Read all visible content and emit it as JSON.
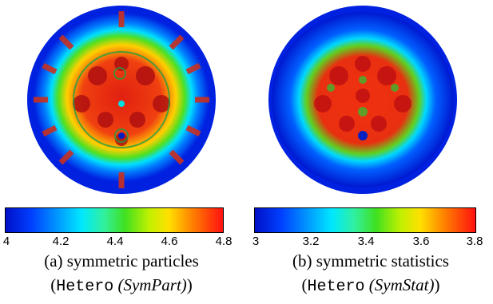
{
  "panels": [
    {
      "colorbar": {
        "ticks": [
          "4",
          "4.2",
          "4.4",
          "4.6",
          "4.8"
        ],
        "range": [
          4,
          4.8
        ]
      },
      "caption_line1": "(a) symmetric particles",
      "caption_paren_open": "(",
      "caption_code": "Hetero",
      "caption_italic": "(SymPart)",
      "caption_paren_close": ")"
    },
    {
      "colorbar": {
        "ticks": [
          "3",
          "3.2",
          "3.4",
          "3.6",
          "3.8"
        ],
        "range": [
          3,
          3.8
        ]
      },
      "caption_line1": "(b) symmetric statistics",
      "caption_paren_open": "(",
      "caption_code": "Hetero",
      "caption_italic": "(SymStat)",
      "caption_paren_close": ")"
    }
  ],
  "colors": {
    "colormap": [
      "#0010c8",
      "#0040ff",
      "#00a0ff",
      "#00e8ff",
      "#30f0a0",
      "#40e020",
      "#c0f000",
      "#ffe000",
      "#ff8000",
      "#ff1010"
    ],
    "background": "#ffffff"
  }
}
